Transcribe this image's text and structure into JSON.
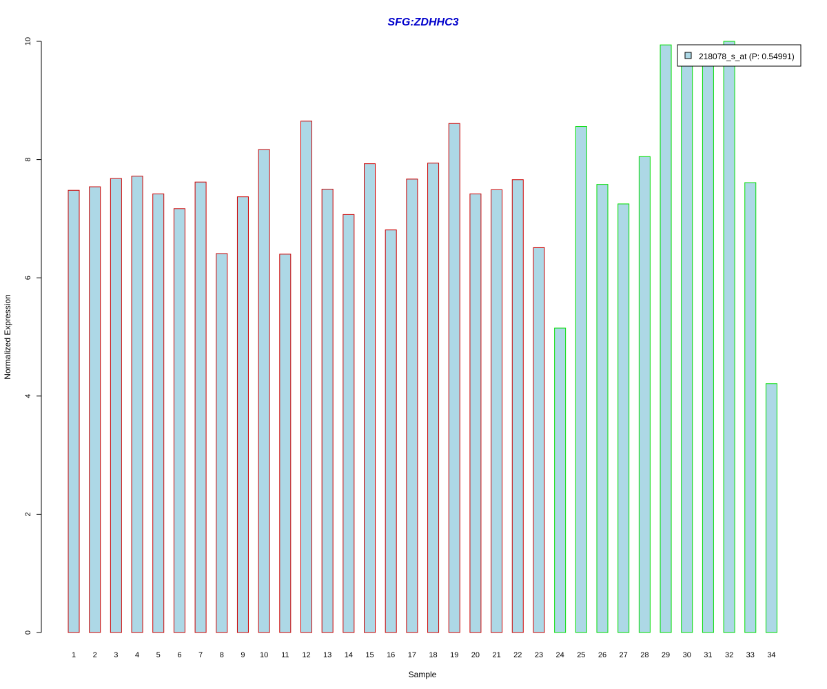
{
  "chart_data": {
    "type": "bar",
    "title": "SFG:ZDHHC3",
    "xlabel": "Sample",
    "ylabel": "Normalized Expression",
    "ylim": [
      0,
      10
    ],
    "yticks": [
      0,
      2,
      4,
      6,
      8,
      10
    ],
    "categories": [
      "1",
      "2",
      "3",
      "4",
      "5",
      "6",
      "7",
      "8",
      "9",
      "10",
      "11",
      "12",
      "13",
      "14",
      "15",
      "16",
      "17",
      "18",
      "19",
      "20",
      "21",
      "22",
      "23",
      "24",
      "25",
      "26",
      "27",
      "28",
      "29",
      "30",
      "31",
      "32",
      "33",
      "34"
    ],
    "series": [
      {
        "name": "218078_s_at (P: 0.54991)",
        "values": [
          7.48,
          7.54,
          7.68,
          7.72,
          7.42,
          7.17,
          7.62,
          6.41,
          7.37,
          8.17,
          6.4,
          8.65,
          7.5,
          7.07,
          7.93,
          6.81,
          7.67,
          7.94,
          8.61,
          7.42,
          7.49,
          7.66,
          6.51,
          5.15,
          8.56,
          7.58,
          7.25,
          8.05,
          9.94,
          9.62,
          9.6,
          10.0,
          7.61,
          4.21
        ]
      }
    ],
    "groups": [
      "1",
      "1",
      "1",
      "1",
      "1",
      "1",
      "1",
      "1",
      "1",
      "1",
      "1",
      "1",
      "1",
      "1",
      "1",
      "1",
      "1",
      "1",
      "1",
      "1",
      "1",
      "1",
      "1",
      "2",
      "2",
      "2",
      "2",
      "2",
      "2",
      "2",
      "2",
      "2",
      "2",
      "2"
    ],
    "colors": {
      "bar_fill": "#add8e6",
      "group1_border": "#cc0000",
      "group2_border": "#00dd00",
      "title": "#0000cc"
    },
    "legend": {
      "position": "top-right",
      "label": "218078_s_at (P: 0.54991)"
    },
    "grid": false
  }
}
